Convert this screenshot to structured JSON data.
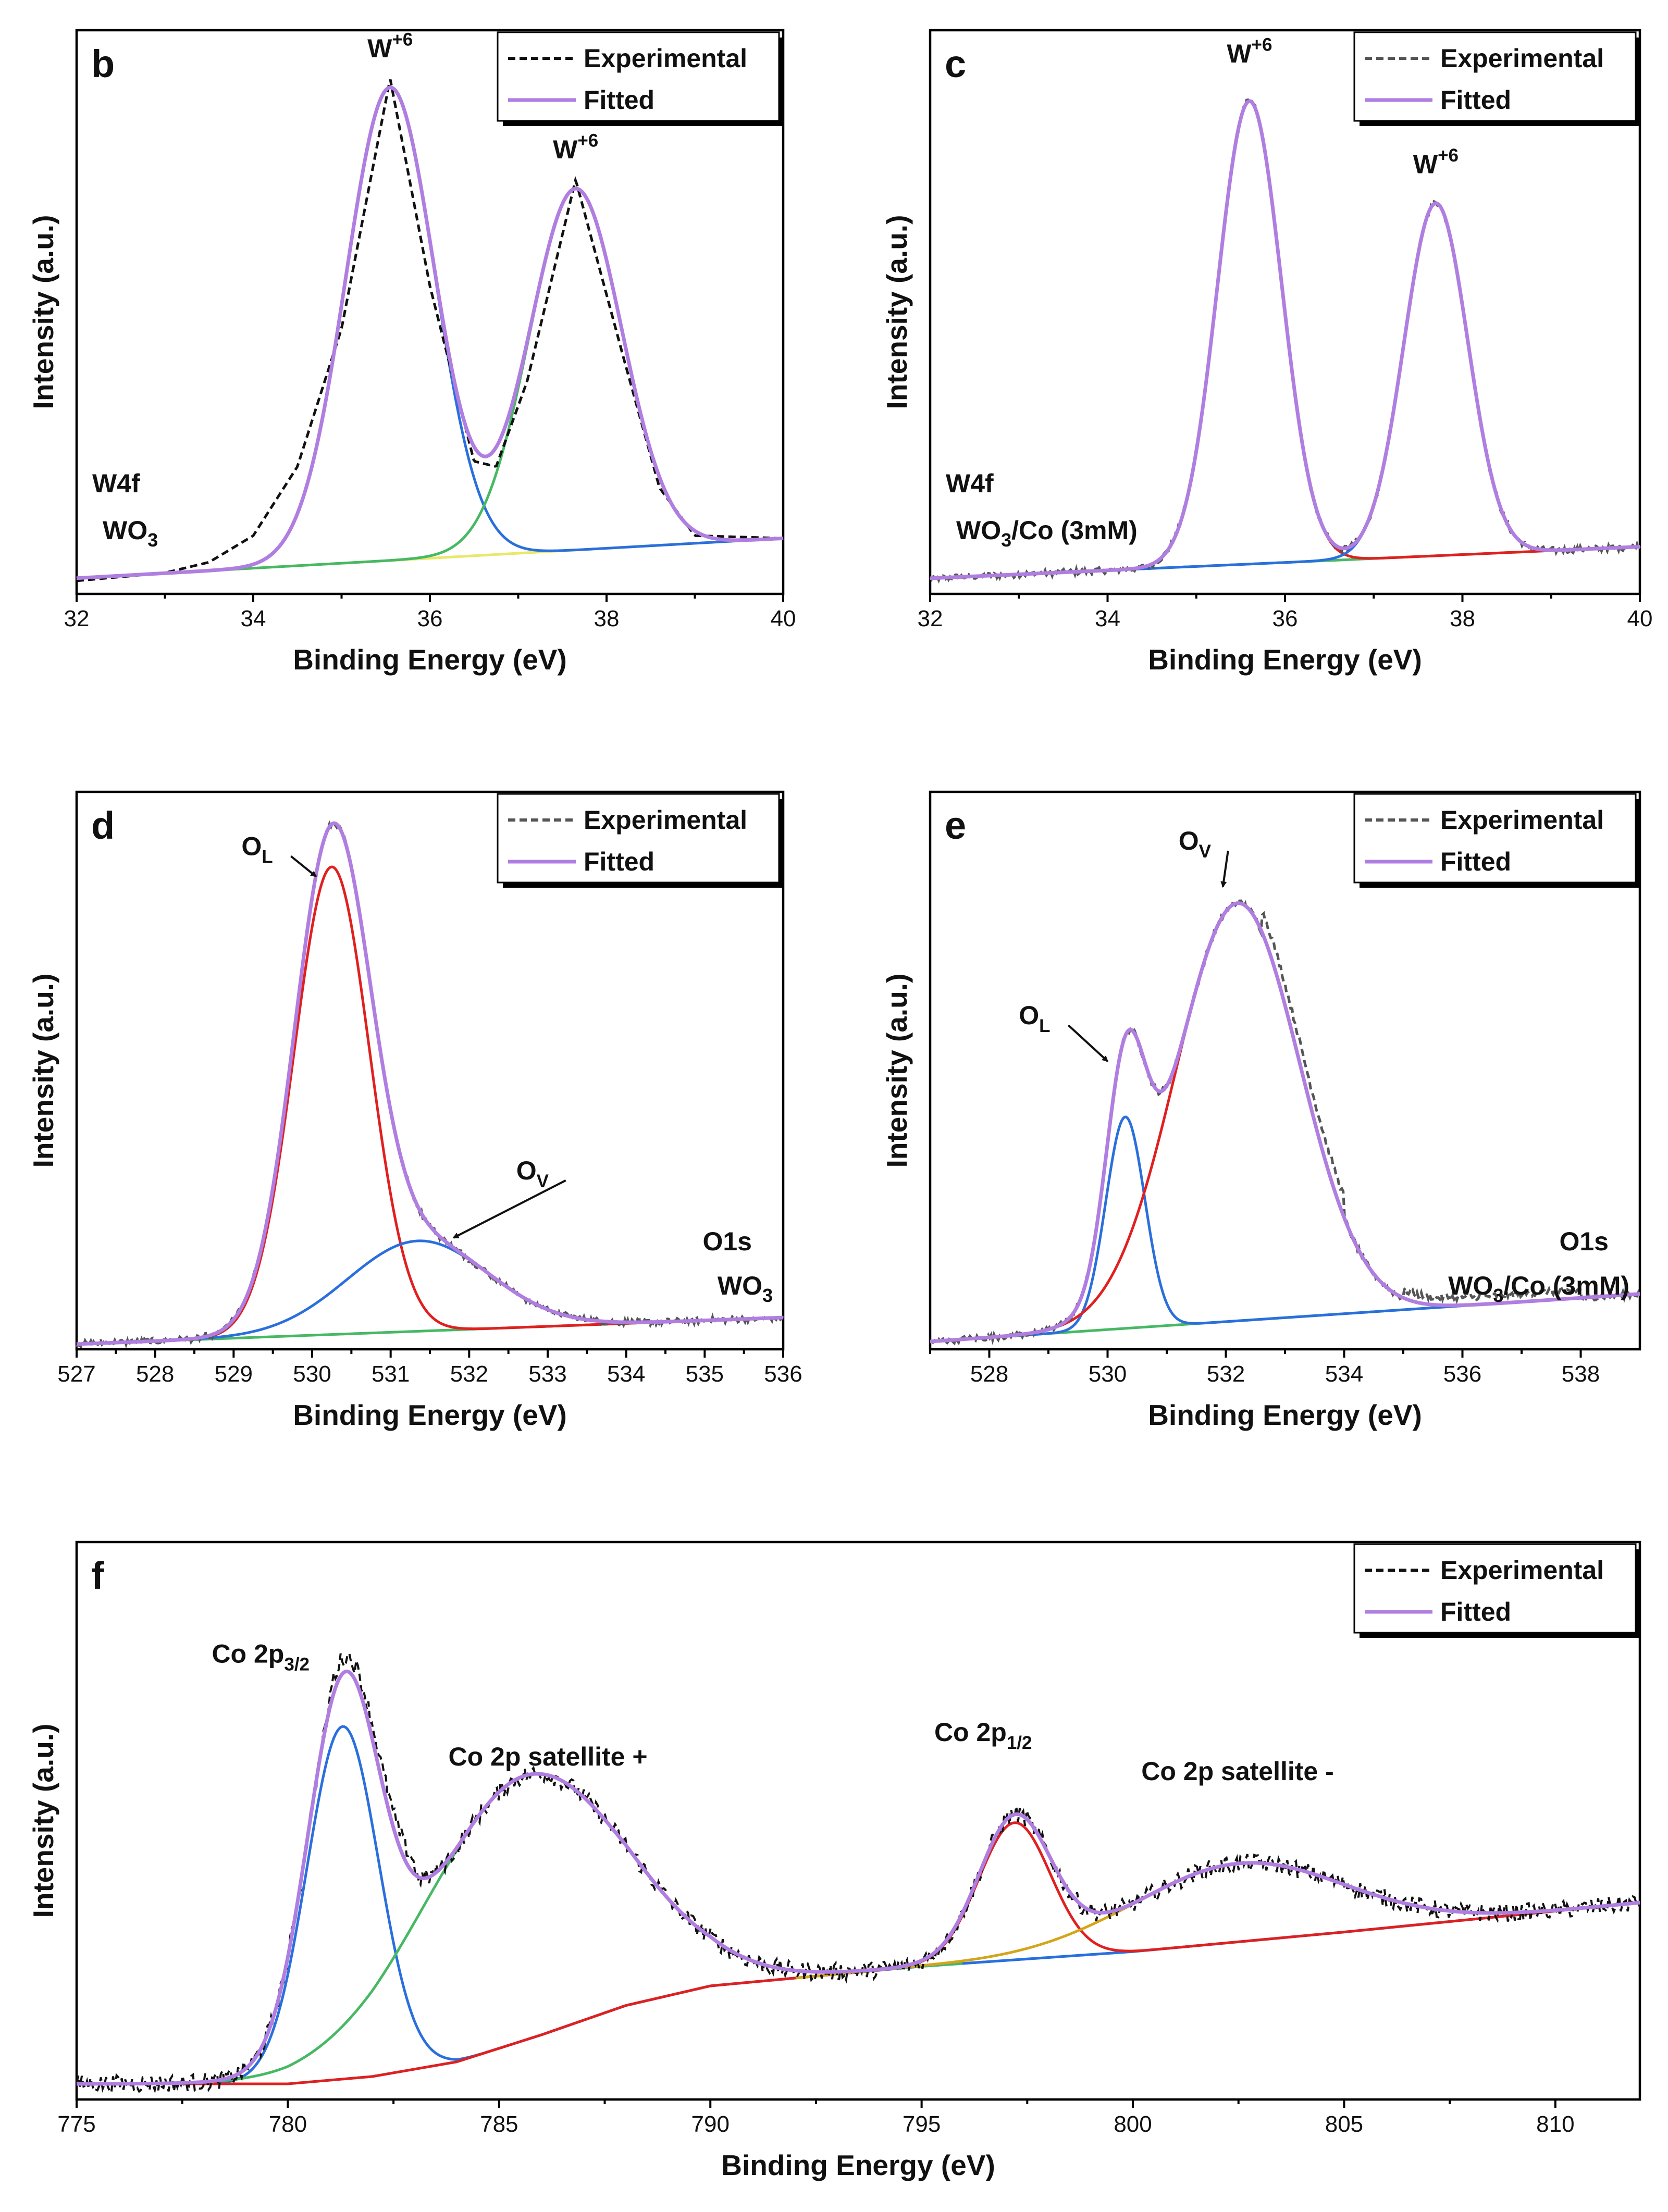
{
  "chart_data": [
    {
      "panel": "b",
      "type": "line",
      "xlabel": "Binding Energy (eV)",
      "ylabel": "Intensity (a.u.)",
      "xlim": [
        32,
        40
      ],
      "ylim": [
        0,
        1.0
      ],
      "xticks": [
        32,
        34,
        36,
        38,
        40
      ],
      "xtick_labels": [
        "32",
        "34",
        "36",
        "38",
        "40"
      ],
      "notes": [
        "W4f",
        "WO3"
      ],
      "legend": [
        {
          "label": "Experimental",
          "style": "dashed",
          "color": "#111111"
        },
        {
          "label": "Fitted",
          "style": "solid",
          "color": "#b07ee0"
        }
      ],
      "background": {
        "type": "linear",
        "x": [
          32,
          40
        ],
        "y": [
          0.01,
          0.085
        ],
        "color": "#e8e86a"
      },
      "peaks": [
        {
          "center": 35.55,
          "amp": 0.89,
          "width": 0.5,
          "color": "#2a6fdc"
        },
        {
          "center": 37.65,
          "amp": 0.68,
          "width": 0.52,
          "color": "#47b864"
        }
      ],
      "experimental": [
        [
          32,
          0.005
        ],
        [
          33,
          0.02
        ],
        [
          33.5,
          0.04
        ],
        [
          34,
          0.09
        ],
        [
          34.5,
          0.22
        ],
        [
          35,
          0.48
        ],
        [
          35.55,
          0.95
        ],
        [
          36,
          0.56
        ],
        [
          36.5,
          0.23
        ],
        [
          36.75,
          0.22
        ],
        [
          37.1,
          0.38
        ],
        [
          37.65,
          0.76
        ],
        [
          38.2,
          0.42
        ],
        [
          38.6,
          0.18
        ],
        [
          39,
          0.09
        ],
        [
          40,
          0.085
        ]
      ],
      "labels": [
        {
          "text": "W",
          "sup": "+6",
          "x": 35.55,
          "y": 0.99
        },
        {
          "text": "W",
          "sup": "+6",
          "x": 37.65,
          "y": 0.8
        }
      ]
    },
    {
      "panel": "c",
      "type": "line",
      "xlabel": "Binding Energy (eV)",
      "ylabel": "Intensity (a.u.)",
      "xlim": [
        32,
        40
      ],
      "ylim": [
        0,
        1.0
      ],
      "xticks": [
        32,
        34,
        36,
        38,
        40
      ],
      "xtick_labels": [
        "32",
        "34",
        "36",
        "38",
        "40"
      ],
      "notes": [
        "W4f",
        "WO3/Co (3mM)"
      ],
      "legend": [
        {
          "label": "Experimental",
          "style": "dashed",
          "color": "#555555"
        },
        {
          "label": "Fitted",
          "style": "solid",
          "color": "#b07ee0"
        }
      ],
      "background": {
        "type": "linear",
        "x": [
          32,
          40
        ],
        "y": [
          0.0,
          0.06
        ],
        "color": "#47b864"
      },
      "peaks": [
        {
          "center": 35.6,
          "amp": 0.88,
          "width": 0.36,
          "color": "#e02020"
        },
        {
          "center": 37.7,
          "amp": 0.67,
          "width": 0.36,
          "color": "#2a6fdc"
        }
      ],
      "labels": [
        {
          "text": "W",
          "sup": "+6",
          "x": 35.6,
          "y": 0.98
        },
        {
          "text": "W",
          "sup": "+6",
          "x": 37.7,
          "y": 0.77
        }
      ]
    },
    {
      "panel": "d",
      "type": "line",
      "xlabel": "Binding Energy (eV)",
      "ylabel": "Intensity (a.u.)",
      "xlim": [
        527,
        536
      ],
      "ylim": [
        0,
        1.0
      ],
      "xticks": [
        527,
        528,
        529,
        530,
        531,
        532,
        533,
        534,
        535,
        536
      ],
      "xtick_labels": [
        "527",
        "528",
        "529",
        "530",
        "531",
        "532",
        "533",
        "534",
        "535",
        "536"
      ],
      "notes": [
        "O1s",
        "WO3"
      ],
      "legend": [
        {
          "label": "Experimental",
          "style": "dashed",
          "color": "#555555"
        },
        {
          "label": "Fitted",
          "style": "solid",
          "color": "#b07ee0"
        }
      ],
      "background": {
        "type": "linear",
        "x": [
          527,
          536
        ],
        "y": [
          0.0,
          0.05
        ],
        "color": "#47b864"
      },
      "peaks": [
        {
          "center": 530.25,
          "amp": 0.88,
          "width": 0.48,
          "color": "#e02020"
        },
        {
          "center": 531.35,
          "amp": 0.17,
          "width": 0.9,
          "color": "#2a6fdc"
        }
      ],
      "labels": [
        {
          "text": "O",
          "sub": "L",
          "x": 529.1,
          "y": 0.92,
          "arrow_to": [
            530.05,
            0.88
          ]
        },
        {
          "text": "O",
          "sub": "V",
          "x": 532.6,
          "y": 0.31,
          "arrow_to": [
            531.8,
            0.2
          ]
        }
      ]
    },
    {
      "panel": "e",
      "type": "line",
      "xlabel": "Binding Energy (eV)",
      "ylabel": "Intensity (a.u.)",
      "xlim": [
        527,
        539
      ],
      "ylim": [
        0,
        1.0
      ],
      "xticks": [
        528,
        530,
        532,
        534,
        536,
        538
      ],
      "xtick_labels": [
        "528",
        "530",
        "532",
        "534",
        "536",
        "538"
      ],
      "notes": [
        "O1s",
        "WO3/Co (3mM)"
      ],
      "legend": [
        {
          "label": "Experimental",
          "style": "dashed",
          "color": "#555555"
        },
        {
          "label": "Fitted",
          "style": "solid",
          "color": "#b07ee0"
        }
      ],
      "background": {
        "type": "linear",
        "x": [
          527,
          539
        ],
        "y": [
          0.0,
          0.09
        ],
        "color": "#47b864"
      },
      "peaks": [
        {
          "center": 530.3,
          "amp": 0.4,
          "width": 0.33,
          "color": "#2a6fdc"
        },
        {
          "center": 532.2,
          "amp": 0.79,
          "width": 1.05,
          "color": "#e02020"
        }
      ],
      "labels": [
        {
          "text": "O",
          "sub": "L",
          "x": 528.5,
          "y": 0.6,
          "arrow_to": [
            530.0,
            0.53
          ]
        },
        {
          "text": "O",
          "sub": "V",
          "x": 531.2,
          "y": 0.93,
          "arrow_to": [
            531.95,
            0.86
          ]
        }
      ]
    },
    {
      "panel": "f",
      "type": "line",
      "xlabel": "Binding Energy (eV)",
      "ylabel": "Intensity (a.u.)",
      "xlim": [
        775,
        812
      ],
      "ylim": [
        0,
        1.0
      ],
      "xticks": [
        775,
        780,
        785,
        790,
        795,
        800,
        805,
        810
      ],
      "xtick_labels": [
        "775",
        "780",
        "785",
        "790",
        "795",
        "800",
        "805",
        "810"
      ],
      "legend": [
        {
          "label": "Experimental",
          "style": "dashed",
          "color": "#111111"
        },
        {
          "label": "Fitted",
          "style": "solid",
          "color": "#b07ee0"
        }
      ],
      "background": {
        "type": "curved",
        "x": [
          775,
          780,
          782,
          784,
          786,
          788,
          790,
          795,
          800,
          805,
          812
        ],
        "y": [
          0.0,
          0.0,
          0.015,
          0.045,
          0.1,
          0.16,
          0.2,
          0.24,
          0.27,
          0.31,
          0.37
        ],
        "color": "#3ec8d4"
      },
      "peaks": [
        {
          "center": 781.3,
          "amp": 0.72,
          "width": 0.85,
          "color": "#2a6fdc"
        },
        {
          "center": 785.6,
          "amp": 0.54,
          "width": 2.4,
          "color": "#47b864",
          "range": [
            775,
            796
          ]
        },
        {
          "center": 797.2,
          "amp": 0.28,
          "width": 0.85,
          "color": "#e02020"
        },
        {
          "center": 802.5,
          "amp": 0.16,
          "width": 2.5,
          "color": "#d4a51a",
          "range": [
            792,
            812
          ]
        }
      ],
      "labels": [
        {
          "text": "Co 2p",
          "sub": "3/2",
          "x": 778.2,
          "y": 0.86
        },
        {
          "text": "Co 2p satellite +",
          "x": 783.8,
          "y": 0.65
        },
        {
          "text": "Co 2p",
          "sub": "1/2",
          "x": 795.3,
          "y": 0.7
        },
        {
          "text": "Co 2p satellite -",
          "x": 800.2,
          "y": 0.62
        }
      ]
    }
  ]
}
